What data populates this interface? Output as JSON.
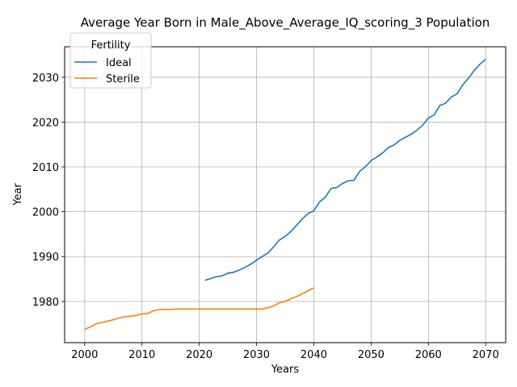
{
  "chart_data": {
    "type": "line",
    "title": "Average Year Born in Male_Above_Average_IQ_scoring_3 Population",
    "xlabel": "Years",
    "ylabel": "Year",
    "xlim": [
      1996.5,
      2073.5
    ],
    "ylim": [
      1970.8,
      2036.8
    ],
    "xticks": [
      2000,
      2010,
      2020,
      2030,
      2040,
      2050,
      2060,
      2070
    ],
    "yticks": [
      1980,
      1990,
      2000,
      2010,
      2020,
      2030
    ],
    "grid": true,
    "legend": {
      "title": "Fertility",
      "placement": "top-left"
    },
    "series": [
      {
        "name": "Ideal",
        "color": "#1f77b4",
        "x": [
          2021,
          2022,
          2023,
          2024,
          2025,
          2026,
          2027,
          2028,
          2029,
          2030,
          2031,
          2032,
          2033,
          2034,
          2035,
          2036,
          2037,
          2038,
          2039,
          2040,
          2041,
          2042,
          2043,
          2044,
          2045,
          2046,
          2047,
          2048,
          2049,
          2050,
          2051,
          2052,
          2053,
          2054,
          2055,
          2056,
          2057,
          2058,
          2059,
          2060,
          2061,
          2062,
          2063,
          2064,
          2065,
          2066,
          2067,
          2068,
          2069,
          2070
        ],
        "y": [
          1984.7,
          1985.1,
          1985.5,
          1985.7,
          1986.3,
          1986.5,
          1987.0,
          1987.6,
          1988.3,
          1989.2,
          1990.0,
          1990.8,
          1992.2,
          1993.7,
          1994.5,
          1995.6,
          1997.0,
          1998.4,
          1999.6,
          2000.2,
          2002.2,
          2003.2,
          2005.2,
          2005.4,
          2006.3,
          2006.9,
          2007.0,
          2009.0,
          2010.0,
          2011.4,
          2012.2,
          2013.1,
          2014.3,
          2014.9,
          2015.9,
          2016.6,
          2017.3,
          2018.2,
          2019.3,
          2020.9,
          2021.6,
          2023.7,
          2024.2,
          2025.6,
          2026.3,
          2028.3,
          2029.8,
          2031.5,
          2032.9,
          2034.0
        ]
      },
      {
        "name": "Sterile",
        "color": "#ff7f0e",
        "x": [
          2000,
          2001,
          2002,
          2003,
          2004,
          2005,
          2006,
          2007,
          2008,
          2009,
          2010,
          2011,
          2012,
          2013,
          2014,
          2015,
          2016,
          2017,
          2018,
          2019,
          2020,
          2021,
          2022,
          2023,
          2024,
          2025,
          2026,
          2027,
          2028,
          2029,
          2030,
          2031,
          2032,
          2033,
          2034,
          2035,
          2036,
          2037,
          2038,
          2039,
          2040
        ],
        "y": [
          1973.8,
          1974.3,
          1975.0,
          1975.3,
          1975.6,
          1975.9,
          1976.3,
          1976.6,
          1976.7,
          1976.9,
          1977.2,
          1977.3,
          1977.9,
          1978.2,
          1978.2,
          1978.2,
          1978.3,
          1978.3,
          1978.3,
          1978.3,
          1978.3,
          1978.3,
          1978.3,
          1978.3,
          1978.3,
          1978.3,
          1978.3,
          1978.3,
          1978.3,
          1978.3,
          1978.3,
          1978.3,
          1978.6,
          1979.0,
          1979.7,
          1980.0,
          1980.6,
          1981.1,
          1981.7,
          1982.4,
          1983.0
        ]
      }
    ]
  }
}
